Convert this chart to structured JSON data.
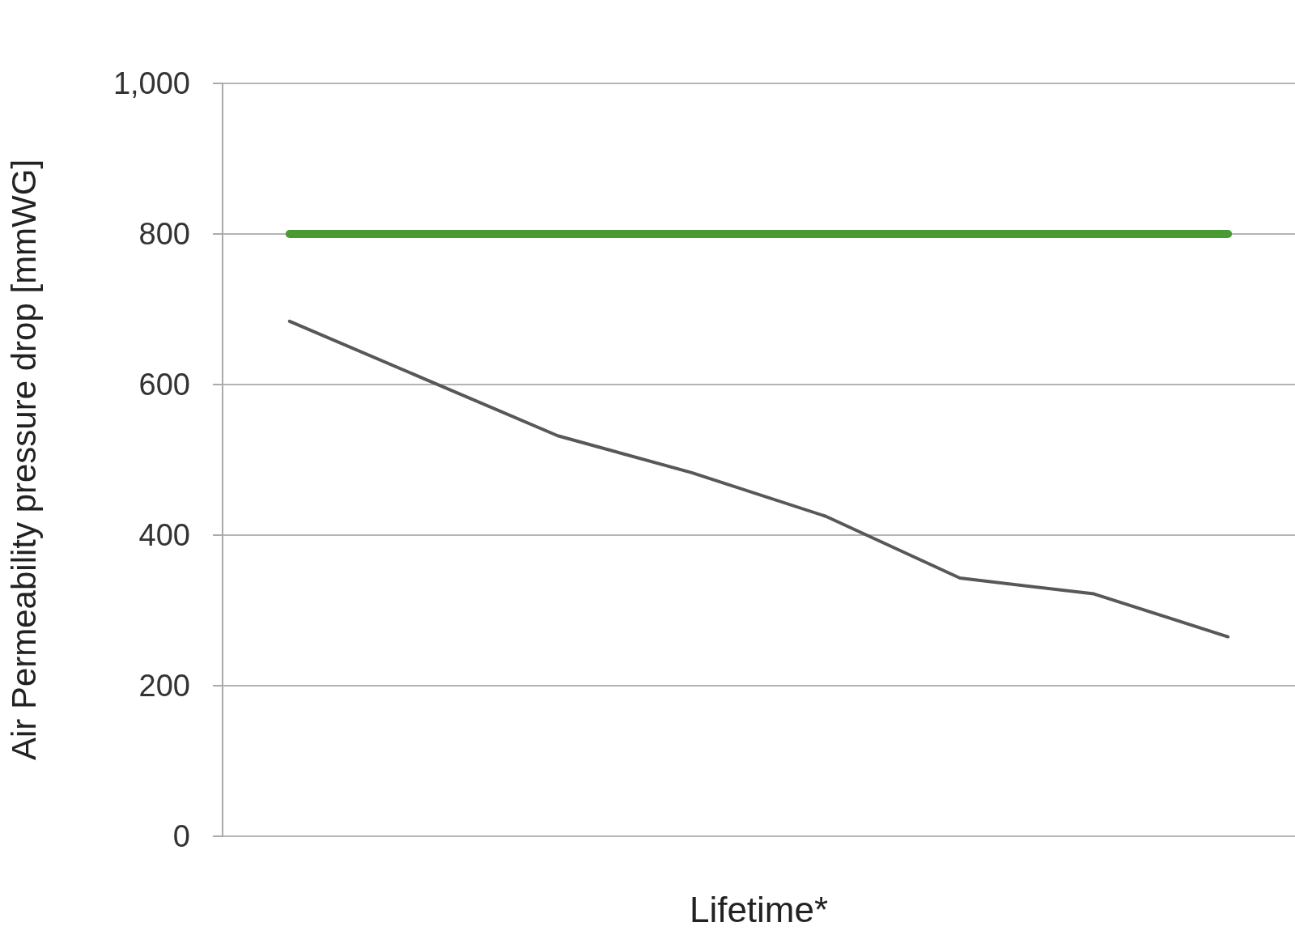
{
  "chart_data": {
    "type": "line",
    "xlabel": "Lifetime*",
    "ylabel": "Air Permeability pressure drop [mmWG]",
    "categories": [
      null,
      null,
      null,
      null,
      null,
      null,
      null,
      null
    ],
    "series": [
      {
        "color": "#4a9a34",
        "values": [
          800,
          800,
          800,
          800,
          800,
          800,
          800,
          800
        ]
      },
      {
        "color": "#58585a",
        "values": [
          684,
          608,
          532,
          483,
          425,
          343,
          322,
          265
        ]
      }
    ],
    "ylim": [
      0,
      1000
    ],
    "yticks": [
      0,
      200,
      400,
      600,
      800,
      {
        "value": 1000,
        "label": "1,000"
      }
    ],
    "grid": "y",
    "marker": "none",
    "line_style": "solid"
  }
}
